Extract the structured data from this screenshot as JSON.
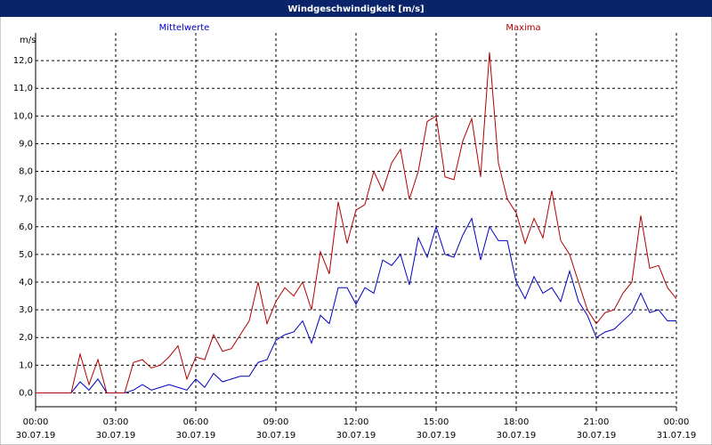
{
  "chart_data": {
    "type": "line",
    "title": "Windgeschwindigkeit [m/s]",
    "y_unit": "m/s",
    "x": [
      0,
      20,
      40,
      60,
      80,
      100,
      120,
      140,
      160,
      180,
      200,
      220,
      240,
      260,
      280,
      300,
      320,
      340,
      360,
      380,
      400,
      420,
      440,
      460,
      480,
      500,
      520,
      540,
      560,
      580,
      600,
      620,
      640,
      660,
      680,
      700,
      720,
      740,
      760,
      780,
      800,
      820,
      840,
      860,
      880,
      900,
      920,
      940,
      960,
      980,
      1000,
      1020,
      1040,
      1060,
      1080,
      1100,
      1120,
      1140,
      1160,
      1180,
      1200,
      1220,
      1240,
      1260,
      1280,
      1300,
      1320,
      1340,
      1360,
      1380,
      1400,
      1420,
      1440
    ],
    "xlim": [
      0,
      1440
    ],
    "xticks": [
      {
        "value": 0,
        "label": "00:00"
      },
      {
        "value": 180,
        "label": "03:00"
      },
      {
        "value": 360,
        "label": "06:00"
      },
      {
        "value": 540,
        "label": "09:00"
      },
      {
        "value": 720,
        "label": "12:00"
      },
      {
        "value": 900,
        "label": "15:00"
      },
      {
        "value": 1080,
        "label": "18:00"
      },
      {
        "value": 1260,
        "label": "21:00"
      },
      {
        "value": 1440,
        "label": "00:00"
      }
    ],
    "xtick_dates": [
      "30.07.19",
      "30.07.19",
      "30.07.19",
      "30.07.19",
      "30.07.19",
      "30.07.19",
      "30.07.19",
      "30.07.19",
      "31.07.19"
    ],
    "ylim": [
      -0.5,
      13
    ],
    "yticks": [
      {
        "value": 0,
        "label": "0,0"
      },
      {
        "value": 1,
        "label": "1,0"
      },
      {
        "value": 2,
        "label": "2,0"
      },
      {
        "value": 3,
        "label": "3,0"
      },
      {
        "value": 4,
        "label": "4,0"
      },
      {
        "value": 5,
        "label": "5,0"
      },
      {
        "value": 6,
        "label": "6,0"
      },
      {
        "value": 7,
        "label": "7,0"
      },
      {
        "value": 8,
        "label": "8,0"
      },
      {
        "value": 9,
        "label": "9,0"
      },
      {
        "value": 10,
        "label": "10,0"
      },
      {
        "value": 11,
        "label": "11,0"
      },
      {
        "value": 12,
        "label": "12,0"
      }
    ],
    "grid": true,
    "series": [
      {
        "name": "Mittelwerte",
        "color": "#0000c0",
        "values": [
          0,
          0,
          0,
          0,
          0,
          0.4,
          0.1,
          0.5,
          0,
          0,
          0,
          0.1,
          0.3,
          0.1,
          0.2,
          0.3,
          0.2,
          0.1,
          0.5,
          0.2,
          0.7,
          0.4,
          0.5,
          0.6,
          0.6,
          1.1,
          1.2,
          1.9,
          2.1,
          2.2,
          2.6,
          1.8,
          2.8,
          2.5,
          3.8,
          3.8,
          3.2,
          3.8,
          3.6,
          4.8,
          4.6,
          5.0,
          3.9,
          5.6,
          4.9,
          6.0,
          5.0,
          4.9,
          5.7,
          6.3,
          4.8,
          6.0,
          5.5,
          5.5,
          4.0,
          3.4,
          4.2,
          3.6,
          3.8,
          3.3,
          4.4,
          3.3,
          2.8,
          2.0,
          2.2,
          2.3,
          2.6,
          2.9,
          3.6,
          2.9,
          3.0,
          2.6,
          2.6
        ]
      },
      {
        "name": "Maxima",
        "color": "#b00000",
        "values": [
          0,
          0,
          0,
          0,
          0,
          1.4,
          0.3,
          1.2,
          0,
          0,
          0,
          1.1,
          1.2,
          0.9,
          1.0,
          1.3,
          1.7,
          0.5,
          1.3,
          1.2,
          2.1,
          1.5,
          1.6,
          2.1,
          2.6,
          4.0,
          2.5,
          3.3,
          3.8,
          3.5,
          4.0,
          3.0,
          5.1,
          4.3,
          6.9,
          5.4,
          6.6,
          6.8,
          8.0,
          7.3,
          8.3,
          8.8,
          7.0,
          8.0,
          9.8,
          10.0,
          7.8,
          7.7,
          9.1,
          9.9,
          7.8,
          12.3,
          8.3,
          7.0,
          6.5,
          5.4,
          6.3,
          5.6,
          7.3,
          5.5,
          5.0,
          4.0,
          3.0,
          2.5,
          2.9,
          3.0,
          3.6,
          4.0,
          6.4,
          4.5,
          4.6,
          3.8,
          3.4
        ]
      }
    ]
  }
}
